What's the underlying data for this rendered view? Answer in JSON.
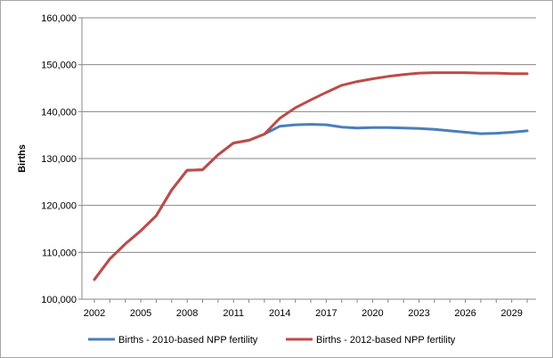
{
  "chart_data": {
    "type": "line",
    "title": "",
    "xlabel": "",
    "ylabel": "Births",
    "ylim": [
      100000,
      160000
    ],
    "y_ticks": [
      100000,
      110000,
      120000,
      130000,
      140000,
      150000,
      160000
    ],
    "y_tick_labels": [
      "100,000",
      "110,000",
      "120,000",
      "130,000",
      "140,000",
      "150,000",
      "160,000"
    ],
    "x_tick_labels": [
      "2002",
      "2005",
      "2008",
      "2011",
      "2014",
      "2017",
      "2020",
      "2023",
      "2026",
      "2029"
    ],
    "x": [
      2002,
      2003,
      2004,
      2005,
      2006,
      2007,
      2008,
      2009,
      2010,
      2011,
      2012,
      2013,
      2014,
      2015,
      2016,
      2017,
      2018,
      2019,
      2020,
      2021,
      2022,
      2023,
      2024,
      2025,
      2026,
      2027,
      2028,
      2029,
      2030
    ],
    "grid": true,
    "legend_position": "bottom",
    "series": [
      {
        "name": "Births - 2010-based NPP fertility",
        "color": "#4a7ebb",
        "values": [
          104200,
          108600,
          111800,
          114600,
          117800,
          123300,
          127500,
          127600,
          130800,
          133300,
          133900,
          135200,
          136900,
          137200,
          137300,
          137200,
          136700,
          136500,
          136600,
          136600,
          136500,
          136400,
          136200,
          135900,
          135600,
          135300,
          135400,
          135600,
          135900
        ]
      },
      {
        "name": "Births - 2012-based NPP fertility",
        "color": "#be4b48",
        "values": [
          104200,
          108600,
          111800,
          114600,
          117800,
          123300,
          127500,
          127600,
          130800,
          133300,
          133900,
          135200,
          138600,
          140800,
          142500,
          144100,
          145600,
          146400,
          147000,
          147500,
          147900,
          148200,
          148300,
          148300,
          148300,
          148200,
          148200,
          148100,
          148100
        ]
      }
    ]
  }
}
